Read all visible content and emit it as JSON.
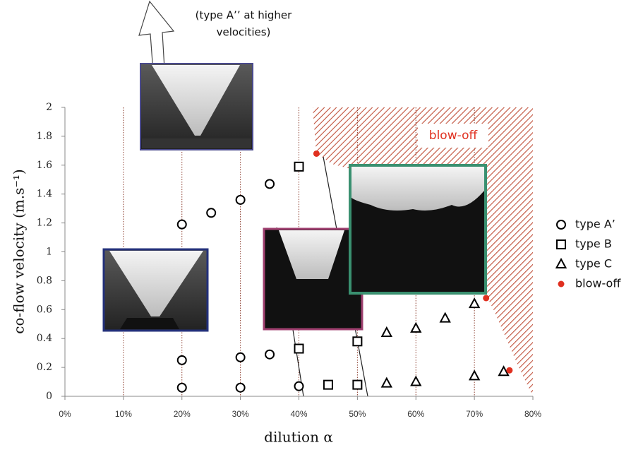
{
  "chart_data": {
    "type": "scatter",
    "annotation": [
      "(type A’’ at higher",
      "velocities)"
    ],
    "region_label": "blow-off",
    "x_label": "dilution α",
    "y_label": "co-flow velocity (m.s⁻¹)",
    "xlim": [
      0,
      80
    ],
    "xticks": [
      {
        "value": 0,
        "label": "0%"
      },
      {
        "value": 10,
        "label": "10%"
      },
      {
        "value": 20,
        "label": "20%"
      },
      {
        "value": 30,
        "label": "30%"
      },
      {
        "value": 40,
        "label": "40%"
      },
      {
        "value": 50,
        "label": "50%"
      },
      {
        "value": 60,
        "label": "60%"
      },
      {
        "value": 70,
        "label": "70%"
      },
      {
        "value": 80,
        "label": "80%"
      }
    ],
    "ylim": [
      0,
      2
    ],
    "yticks": [
      0,
      0.2,
      0.4,
      0.6,
      0.8,
      1,
      1.2,
      1.4,
      1.6,
      1.8,
      2
    ],
    "grid": true,
    "series": [
      {
        "name": "type A’",
        "marker": "circle",
        "color": "#000000",
        "x": [
          20,
          25,
          30,
          35,
          20,
          30,
          35,
          20,
          30,
          40
        ],
        "values": [
          1.19,
          1.27,
          1.36,
          1.47,
          0.25,
          0.27,
          0.29,
          0.06,
          0.06,
          0.07
        ]
      },
      {
        "name": "type B",
        "marker": "square",
        "color": "#000000",
        "x": [
          40,
          40,
          45,
          50,
          50
        ],
        "values": [
          1.59,
          0.33,
          0.08,
          0.08,
          0.38
        ]
      },
      {
        "name": "type C",
        "marker": "triangle",
        "color": "#000000",
        "x": [
          55,
          55,
          60,
          60,
          65,
          70,
          70,
          75
        ],
        "values": [
          0.44,
          0.09,
          0.47,
          0.1,
          0.54,
          0.64,
          0.14,
          0.17
        ]
      },
      {
        "name": "blow-off",
        "marker": "dot",
        "color": "#e03020",
        "x": [
          43,
          72,
          76
        ],
        "values": [
          1.68,
          0.68,
          0.18
        ]
      }
    ]
  }
}
